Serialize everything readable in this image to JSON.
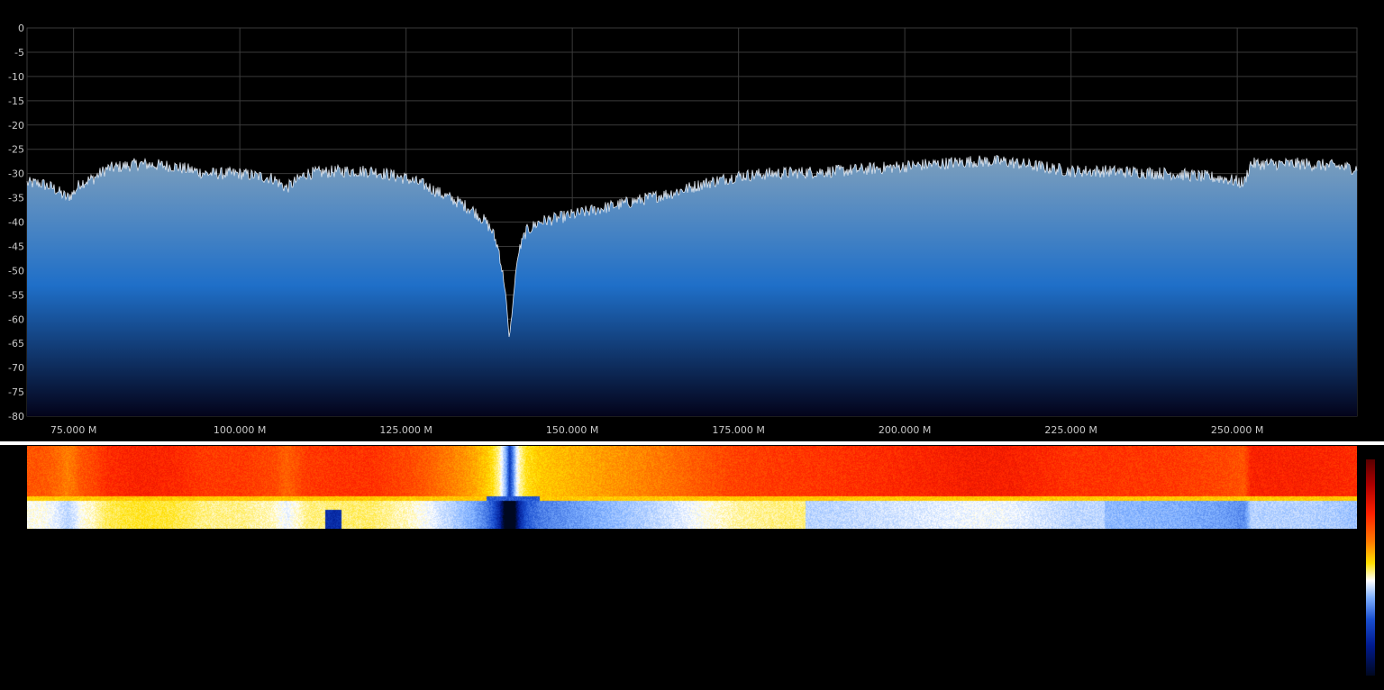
{
  "spectrum": {
    "y_labels": [
      "0",
      "-5",
      "-10",
      "-15",
      "-20",
      "-25",
      "-30",
      "-35",
      "-40",
      "-45",
      "-50",
      "-55",
      "-60",
      "-65",
      "-70",
      "-75",
      "-80"
    ],
    "x_labels": [
      "75.000 M",
      "100.000 M",
      "125.000 M",
      "150.000 M",
      "175.000 M",
      "200.000 M",
      "225.000 M",
      "250.000 M"
    ],
    "colors": {
      "background": "#000000",
      "grid": "#3a3a3a",
      "trace": "#e0e6ee",
      "fill_top": "#7d9fbd",
      "fill_mid": "#1f6fc8",
      "fill_bottom": "#03031a"
    }
  },
  "chart_data": {
    "type": "area",
    "title": "",
    "xlabel": "",
    "ylabel": "",
    "x_unit": "MHz",
    "xlim": [
      68,
      268
    ],
    "ylim": [
      -80,
      0
    ],
    "grid": true,
    "series": [
      {
        "x": [
          68,
          70,
          72,
          74,
          75,
          76,
          78,
          80,
          85,
          90,
          95,
          100,
          105,
          107,
          110,
          115,
          120,
          125,
          128,
          130,
          133,
          135,
          137,
          138,
          139,
          140,
          140.5,
          141,
          141.5,
          142,
          143,
          145,
          150,
          155,
          160,
          165,
          170,
          175,
          180,
          190,
          200,
          210,
          215,
          220,
          225,
          230,
          240,
          248,
          251,
          252,
          255,
          260,
          265,
          268
        ],
        "values": [
          -32,
          -32,
          -33,
          -35,
          -34,
          -32,
          -31,
          -29,
          -28,
          -28.5,
          -30,
          -30,
          -31,
          -33,
          -30,
          -29.5,
          -29.5,
          -31,
          -32.5,
          -34,
          -36,
          -37.5,
          -40,
          -42,
          -46,
          -55,
          -64,
          -58,
          -50,
          -46,
          -42,
          -40,
          -38.5,
          -37,
          -35.5,
          -34,
          -32,
          -30.5,
          -30,
          -29.5,
          -28.5,
          -27.5,
          -27.5,
          -28.5,
          -29.5,
          -29.5,
          -30,
          -31,
          -32,
          -28,
          -28,
          -28,
          -28.5,
          -29
        ]
      }
    ]
  },
  "waterfall": {
    "colormap": [
      "#5a0000",
      "#b00000",
      "#ff2000",
      "#ff7a00",
      "#ffe000",
      "#ffffff",
      "#7fb0ff",
      "#1a4fd0",
      "#001a90",
      "#000820"
    ]
  }
}
